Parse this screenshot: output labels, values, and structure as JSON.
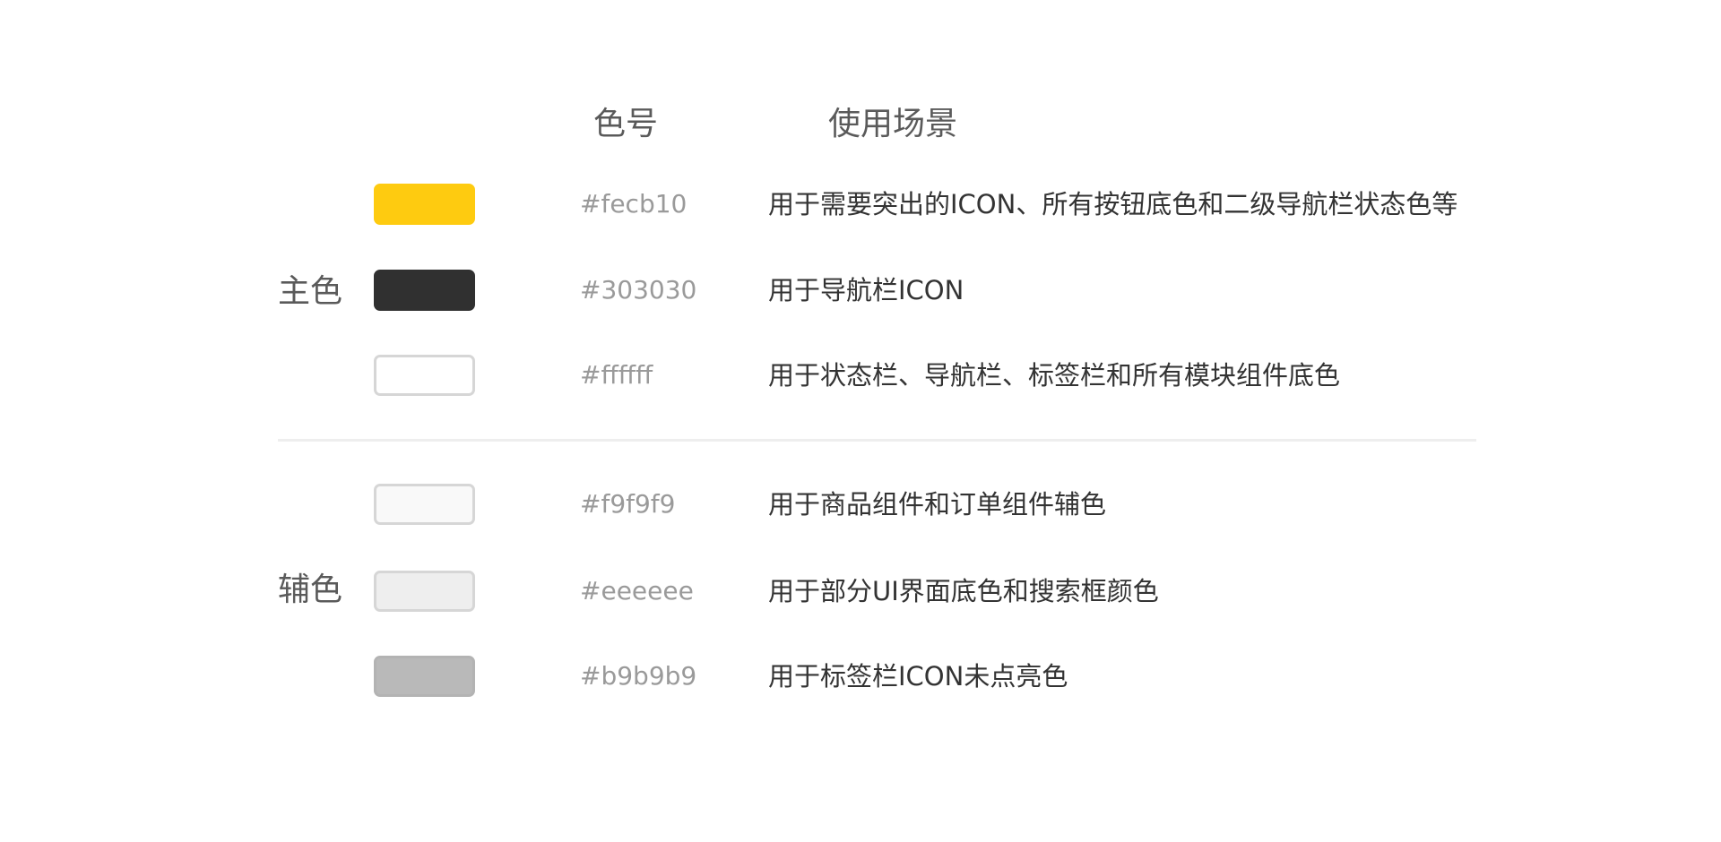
{
  "headers": {
    "code": "色号",
    "usage": "使用场景"
  },
  "groups": {
    "primary": {
      "label": "主色",
      "rows": [
        {
          "hex": "#fecb10",
          "color": "#fecb10",
          "border": "#fecb10",
          "usage": "用于需要突出的ICON、所有按钮底色和二级导航栏状态色等"
        },
        {
          "hex": "#303030",
          "color": "#303030",
          "border": "#303030",
          "usage": "用于导航栏ICON"
        },
        {
          "hex": "#ffffff",
          "color": "#ffffff",
          "border": "#d6d6d6",
          "usage": "用于状态栏、导航栏、标签栏和所有模块组件底色"
        }
      ]
    },
    "secondary": {
      "label": "辅色",
      "rows": [
        {
          "hex": "#f9f9f9",
          "color": "#f9f9f9",
          "border": "#d6d6d6",
          "usage": "用于商品组件和订单组件辅色"
        },
        {
          "hex": "#eeeeee",
          "color": "#eeeeee",
          "border": "#d6d6d6",
          "usage": "用于部分UI界面底色和搜索框颜色"
        },
        {
          "hex": "#b9b9b9",
          "color": "#b9b9b9",
          "border": "#b3b3b3",
          "usage": "用于标签栏ICON未点亮色"
        }
      ]
    }
  }
}
